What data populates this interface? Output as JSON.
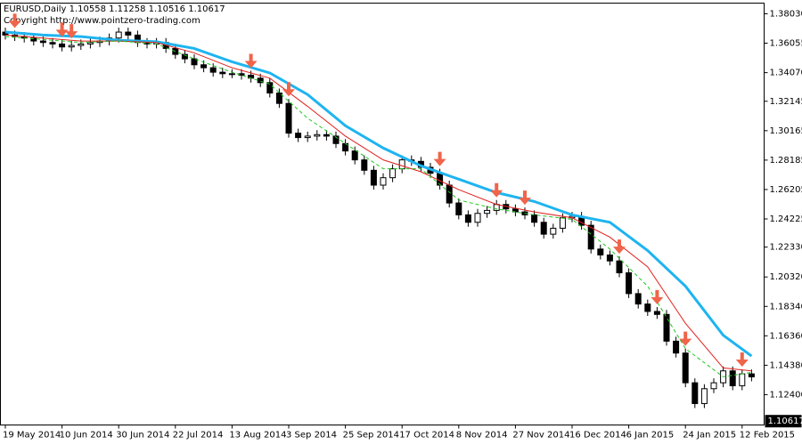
{
  "chart_data": {
    "type": "candlestick",
    "title": "EURUSD,Daily  1.10558 1.11258 1.10516 1.10617",
    "subtitle": "Copyright http://www.pointzero-trading.com",
    "current_price": 1.10617,
    "categories": [
      "19 May 2014",
      null,
      null,
      null,
      null,
      null,
      "10 Jun 2014",
      null,
      null,
      null,
      null,
      null,
      "30 Jun 2014",
      null,
      null,
      null,
      null,
      null,
      "22 Jul 2014",
      null,
      null,
      null,
      null,
      null,
      "13 Aug 2014",
      null,
      null,
      null,
      null,
      null,
      "3 Sep 2014",
      null,
      null,
      null,
      null,
      null,
      "25 Sep 2014",
      null,
      null,
      null,
      null,
      null,
      "17 Oct 2014",
      null,
      null,
      null,
      null,
      null,
      "8 Nov 2014",
      null,
      null,
      null,
      null,
      null,
      "27 Nov 2014",
      null,
      null,
      null,
      null,
      null,
      "16 Dec 2014",
      null,
      null,
      null,
      null,
      null,
      "6 Jan 2015",
      null,
      null,
      null,
      null,
      null,
      "24 Jan 2015",
      null,
      null,
      null,
      null,
      null,
      "12 Feb 2015",
      null
    ],
    "ohlc": [
      [
        1.368,
        1.371,
        1.363,
        1.366
      ],
      [
        1.366,
        1.369,
        1.362,
        1.365
      ],
      [
        1.365,
        1.368,
        1.361,
        1.364
      ],
      [
        1.364,
        1.367,
        1.359,
        1.362
      ],
      [
        1.362,
        1.365,
        1.358,
        1.361
      ],
      [
        1.361,
        1.364,
        1.357,
        1.36
      ],
      [
        1.36,
        1.363,
        1.355,
        1.358
      ],
      [
        1.358,
        1.362,
        1.355,
        1.359
      ],
      [
        1.359,
        1.363,
        1.356,
        1.36
      ],
      [
        1.36,
        1.364,
        1.357,
        1.361
      ],
      [
        1.361,
        1.365,
        1.358,
        1.362
      ],
      [
        1.362,
        1.367,
        1.359,
        1.364
      ],
      [
        1.364,
        1.371,
        1.361,
        1.368
      ],
      [
        1.368,
        1.371,
        1.363,
        1.366
      ],
      [
        1.366,
        1.369,
        1.358,
        1.361
      ],
      [
        1.361,
        1.364,
        1.357,
        1.36
      ],
      [
        1.36,
        1.364,
        1.357,
        1.361
      ],
      [
        1.361,
        1.364,
        1.354,
        1.357
      ],
      [
        1.357,
        1.36,
        1.35,
        1.353
      ],
      [
        1.353,
        1.356,
        1.347,
        1.35
      ],
      [
        1.35,
        1.353,
        1.343,
        1.346
      ],
      [
        1.346,
        1.349,
        1.341,
        1.344
      ],
      [
        1.344,
        1.347,
        1.338,
        1.341
      ],
      [
        1.341,
        1.344,
        1.337,
        1.34
      ],
      [
        1.34,
        1.343,
        1.337,
        1.34
      ],
      [
        1.34,
        1.343,
        1.336,
        1.339
      ],
      [
        1.339,
        1.342,
        1.334,
        1.337
      ],
      [
        1.337,
        1.34,
        1.331,
        1.334
      ],
      [
        1.334,
        1.337,
        1.324,
        1.327
      ],
      [
        1.327,
        1.33,
        1.317,
        1.32
      ],
      [
        1.32,
        1.323,
        1.297,
        1.3
      ],
      [
        1.3,
        1.303,
        1.294,
        1.297
      ],
      [
        1.297,
        1.301,
        1.294,
        1.298
      ],
      [
        1.298,
        1.302,
        1.295,
        1.299
      ],
      [
        1.299,
        1.302,
        1.295,
        1.298
      ],
      [
        1.298,
        1.301,
        1.29,
        1.293
      ],
      [
        1.293,
        1.296,
        1.285,
        1.288
      ],
      [
        1.288,
        1.291,
        1.279,
        1.282
      ],
      [
        1.282,
        1.285,
        1.272,
        1.275
      ],
      [
        1.275,
        1.278,
        1.262,
        1.265
      ],
      [
        1.265,
        1.273,
        1.262,
        1.27
      ],
      [
        1.27,
        1.279,
        1.267,
        1.276
      ],
      [
        1.276,
        1.285,
        1.273,
        1.282
      ],
      [
        1.282,
        1.285,
        1.278,
        1.281
      ],
      [
        1.281,
        1.284,
        1.274,
        1.277
      ],
      [
        1.277,
        1.28,
        1.27,
        1.273
      ],
      [
        1.273,
        1.276,
        1.262,
        1.265
      ],
      [
        1.265,
        1.268,
        1.25,
        1.253
      ],
      [
        1.253,
        1.256,
        1.242,
        1.245
      ],
      [
        1.245,
        1.248,
        1.237,
        1.24
      ],
      [
        1.24,
        1.249,
        1.237,
        1.246
      ],
      [
        1.246,
        1.251,
        1.243,
        1.248
      ],
      [
        1.248,
        1.255,
        1.245,
        1.252
      ],
      [
        1.252,
        1.255,
        1.246,
        1.249
      ],
      [
        1.249,
        1.252,
        1.244,
        1.247
      ],
      [
        1.247,
        1.25,
        1.242,
        1.245
      ],
      [
        1.245,
        1.248,
        1.237,
        1.24
      ],
      [
        1.24,
        1.243,
        1.229,
        1.232
      ],
      [
        1.232,
        1.239,
        1.229,
        1.236
      ],
      [
        1.236,
        1.246,
        1.233,
        1.243
      ],
      [
        1.243,
        1.247,
        1.24,
        1.244
      ],
      [
        1.244,
        1.247,
        1.235,
        1.238
      ],
      [
        1.238,
        1.241,
        1.219,
        1.222
      ],
      [
        1.222,
        1.225,
        1.215,
        1.218
      ],
      [
        1.218,
        1.221,
        1.211,
        1.214
      ],
      [
        1.214,
        1.217,
        1.203,
        1.206
      ],
      [
        1.206,
        1.209,
        1.189,
        1.192
      ],
      [
        1.192,
        1.195,
        1.182,
        1.185
      ],
      [
        1.185,
        1.188,
        1.177,
        1.18
      ],
      [
        1.18,
        1.183,
        1.175,
        1.178
      ],
      [
        1.178,
        1.181,
        1.157,
        1.16
      ],
      [
        1.16,
        1.163,
        1.149,
        1.152
      ],
      [
        1.152,
        1.155,
        1.129,
        1.132
      ],
      [
        1.132,
        1.135,
        1.115,
        1.118
      ],
      [
        1.118,
        1.131,
        1.115,
        1.128
      ],
      [
        1.128,
        1.135,
        1.125,
        1.132
      ],
      [
        1.132,
        1.143,
        1.129,
        1.14
      ],
      [
        1.14,
        1.143,
        1.127,
        1.13
      ],
      [
        1.13,
        1.141,
        1.127,
        1.138
      ],
      [
        1.138,
        1.141,
        1.133,
        1.136
      ]
    ],
    "lines": [
      {
        "color": "#1eb4f0",
        "width": 3,
        "x": [
          0,
          4,
          8,
          12,
          16,
          20,
          24,
          28,
          32,
          36,
          40,
          44,
          48,
          52,
          56,
          60,
          64,
          68,
          72,
          76,
          79
        ],
        "values": [
          1.368,
          1.366,
          1.365,
          1.3625,
          1.3615,
          1.357,
          1.348,
          1.3405,
          1.326,
          1.305,
          1.29,
          1.278,
          1.269,
          1.26,
          1.254,
          1.245,
          1.24,
          1.221,
          1.197,
          1.164,
          1.15
        ]
      },
      {
        "color": "#e0201c",
        "width": 1,
        "x": [
          0,
          4,
          8,
          12,
          16,
          20,
          24,
          28,
          32,
          36,
          40,
          44,
          48,
          52,
          56,
          60,
          64,
          68,
          72,
          76,
          79
        ],
        "values": [
          1.366,
          1.364,
          1.362,
          1.362,
          1.361,
          1.354,
          1.344,
          1.337,
          1.318,
          1.298,
          1.282,
          1.274,
          1.262,
          1.252,
          1.247,
          1.243,
          1.23,
          1.21,
          1.172,
          1.142,
          1.14
        ]
      },
      {
        "color": "#1ec81e",
        "width": 1,
        "dashed": true,
        "x": [
          0,
          4,
          8,
          12,
          16,
          20,
          24,
          28,
          32,
          36,
          40,
          44,
          48,
          52,
          56,
          60,
          64,
          68,
          72,
          76,
          79
        ],
        "values": [
          1.365,
          1.363,
          1.361,
          1.362,
          1.36,
          1.35,
          1.341,
          1.333,
          1.31,
          1.293,
          1.276,
          1.276,
          1.255,
          1.249,
          1.245,
          1.242,
          1.222,
          1.197,
          1.155,
          1.136,
          1.139
        ]
      }
    ],
    "sell_signals": [
      1,
      6,
      7,
      26,
      30,
      46,
      52,
      55,
      65,
      69,
      72,
      78
    ],
    "signal_color": "#f0644a",
    "ylim": [
      1.1036,
      1.3875
    ],
    "yticks": [
      {
        "value": 1.3803,
        "label": "1.38030"
      },
      {
        "value": 1.36055,
        "label": "1.36055"
      },
      {
        "value": 1.3407,
        "label": "1.34070"
      },
      {
        "value": 1.32145,
        "label": "1.32145"
      },
      {
        "value": 1.30165,
        "label": "1.30165"
      },
      {
        "value": 1.28185,
        "label": "1.28185"
      },
      {
        "value": 1.26205,
        "label": "1.26205"
      },
      {
        "value": 1.24225,
        "label": "1.24225"
      },
      {
        "value": 1.2233,
        "label": "1.22330"
      },
      {
        "value": 1.2032,
        "label": "1.20320"
      },
      {
        "value": 1.1834,
        "label": "1.18340"
      },
      {
        "value": 1.1636,
        "label": "1.16360"
      },
      {
        "value": 1.1438,
        "label": "1.14380"
      },
      {
        "value": 1.124,
        "label": "1.12400"
      }
    ]
  }
}
